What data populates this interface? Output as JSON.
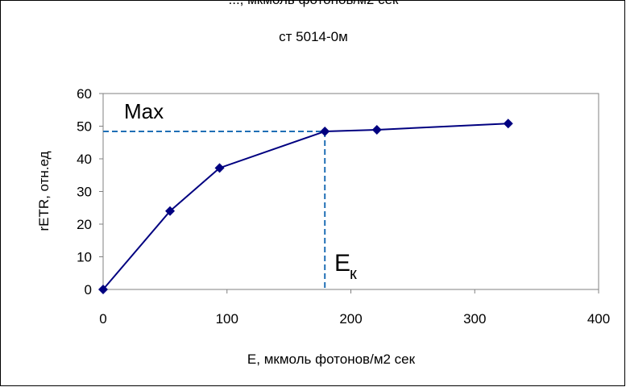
{
  "chart_data": {
    "type": "line",
    "title_partial": "..., мкмоль фотонов/м2 сек",
    "subtitle": "ст 5014-0м",
    "xlabel": "E, мкмоль фотонов/м2 сек",
    "ylabel": "rETR, отн.ед",
    "xlim": [
      0,
      400
    ],
    "ylim": [
      0,
      60
    ],
    "xticks": [
      "0",
      "100",
      "200",
      "300",
      "400"
    ],
    "yticks": [
      "0",
      "10",
      "20",
      "30",
      "40",
      "50",
      "60"
    ],
    "grid": false,
    "series": [
      {
        "x": [
          0,
          54,
          94,
          179,
          221,
          327
        ],
        "y": [
          0,
          24,
          37.2,
          48.4,
          48.9,
          50.8
        ],
        "color": "#000080"
      }
    ],
    "annotations": {
      "max_label": "Max",
      "max_value": 48.4,
      "ek_label_main": "E",
      "ek_label_sub": "к",
      "ek_value": 179,
      "guide_color": "#1f6fb5"
    }
  }
}
